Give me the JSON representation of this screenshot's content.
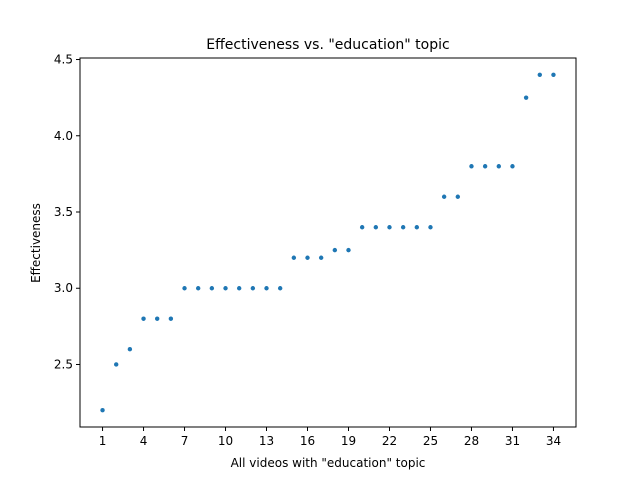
{
  "chart_data": {
    "type": "scatter",
    "title": "Effectiveness vs. \"education\" topic",
    "xlabel": "All videos with \"education\" topic",
    "ylabel": "Effectiveness",
    "xlim": [
      -0.65,
      35.65
    ],
    "ylim": [
      2.09,
      4.51
    ],
    "xticks": [
      1,
      4,
      7,
      10,
      13,
      16,
      19,
      22,
      25,
      28,
      31,
      34
    ],
    "yticks": [
      2.5,
      3.0,
      3.5,
      4.0,
      4.5
    ],
    "ytick_labels": [
      "2.5",
      "3.0",
      "3.5",
      "4.0",
      "4.5"
    ],
    "grid": false,
    "point_color": "#1f77b4",
    "x": [
      1,
      2,
      3,
      4,
      5,
      6,
      7,
      8,
      9,
      10,
      11,
      12,
      13,
      14,
      15,
      16,
      17,
      18,
      19,
      20,
      21,
      22,
      23,
      24,
      25,
      26,
      27,
      28,
      29,
      30,
      31,
      32,
      33,
      34
    ],
    "y": [
      2.2,
      2.5,
      2.6,
      2.8,
      2.8,
      2.8,
      3.0,
      3.0,
      3.0,
      3.0,
      3.0,
      3.0,
      3.0,
      3.0,
      3.2,
      3.2,
      3.2,
      3.25,
      3.25,
      3.4,
      3.4,
      3.4,
      3.4,
      3.4,
      3.4,
      3.6,
      3.6,
      3.8,
      3.8,
      3.8,
      3.8,
      4.25,
      4.4,
      4.4
    ]
  }
}
